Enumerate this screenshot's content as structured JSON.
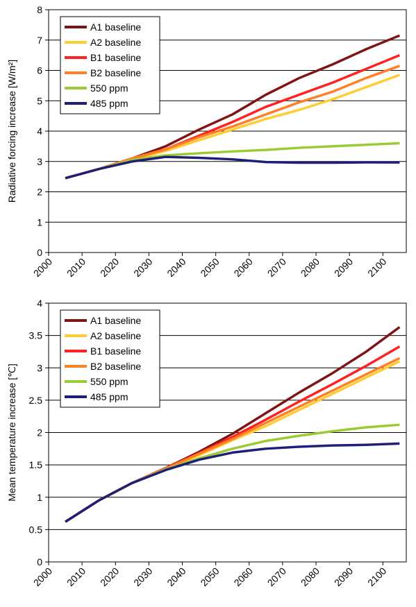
{
  "chart_data": [
    {
      "type": "line",
      "ylabel": "Radiative forcing increase [W/m²]",
      "x": [
        2005,
        2015,
        2025,
        2035,
        2045,
        2055,
        2065,
        2075,
        2085,
        2095,
        2105
      ],
      "xlim": [
        2000,
        2107
      ],
      "xticks": [
        2000,
        2010,
        2020,
        2030,
        2040,
        2050,
        2060,
        2070,
        2080,
        2090,
        2100
      ],
      "ylim": [
        0,
        8
      ],
      "yticks": [
        0,
        1,
        2,
        3,
        4,
        5,
        6,
        7,
        8
      ],
      "grid": true,
      "legend": "upper-left",
      "series": [
        {
          "name": "A1 baseline",
          "color": "#7f1414",
          "values": [
            2.45,
            2.75,
            3.1,
            3.5,
            4.05,
            4.55,
            5.2,
            5.75,
            6.2,
            6.7,
            7.15
          ]
        },
        {
          "name": "A2 baseline",
          "color": "#ffcc33",
          "values": [
            2.45,
            2.75,
            3.05,
            3.35,
            3.7,
            4.05,
            4.4,
            4.7,
            5.05,
            5.45,
            5.85
          ]
        },
        {
          "name": "B1 baseline",
          "color": "#ff2020",
          "values": [
            2.45,
            2.75,
            3.1,
            3.4,
            3.85,
            4.3,
            4.8,
            5.2,
            5.6,
            6.05,
            6.5
          ]
        },
        {
          "name": "B2 baseline",
          "color": "#ff7f27",
          "values": [
            2.45,
            2.75,
            3.1,
            3.4,
            3.8,
            4.15,
            4.55,
            4.95,
            5.3,
            5.75,
            6.15
          ]
        },
        {
          "name": "550 ppm",
          "color": "#99cc33",
          "values": [
            2.45,
            2.75,
            3.05,
            3.2,
            3.27,
            3.33,
            3.38,
            3.45,
            3.5,
            3.55,
            3.6
          ]
        },
        {
          "name": "485 ppm",
          "color": "#1f1f7a",
          "values": [
            2.45,
            2.75,
            3.0,
            3.15,
            3.12,
            3.07,
            2.98,
            2.96,
            2.96,
            2.97,
            2.97
          ]
        }
      ]
    },
    {
      "type": "line",
      "ylabel": "Mean temperature increase [℃]",
      "x": [
        2005,
        2015,
        2025,
        2035,
        2045,
        2055,
        2065,
        2075,
        2085,
        2095,
        2105
      ],
      "xlim": [
        2000,
        2107
      ],
      "xticks": [
        2000,
        2010,
        2020,
        2030,
        2040,
        2050,
        2060,
        2070,
        2080,
        2090,
        2100
      ],
      "ylim": [
        0,
        4
      ],
      "yticks": [
        0,
        0.5,
        1,
        1.5,
        2,
        2.5,
        3,
        3.5,
        4
      ],
      "grid": true,
      "legend": "upper-left",
      "series": [
        {
          "name": "A1 baseline",
          "color": "#7f1414",
          "values": [
            0.62,
            0.95,
            1.22,
            1.45,
            1.7,
            1.98,
            2.3,
            2.62,
            2.92,
            3.25,
            3.63
          ]
        },
        {
          "name": "A2 baseline",
          "color": "#ffcc33",
          "values": [
            0.62,
            0.95,
            1.22,
            1.43,
            1.65,
            1.88,
            2.1,
            2.35,
            2.6,
            2.85,
            3.1
          ]
        },
        {
          "name": "B1 baseline",
          "color": "#ff2020",
          "values": [
            0.62,
            0.95,
            1.22,
            1.45,
            1.68,
            1.93,
            2.2,
            2.48,
            2.75,
            3.03,
            3.33
          ]
        },
        {
          "name": "B2 baseline",
          "color": "#ff7f27",
          "values": [
            0.62,
            0.95,
            1.22,
            1.44,
            1.67,
            1.9,
            2.15,
            2.4,
            2.65,
            2.9,
            3.15
          ]
        },
        {
          "name": "550 ppm",
          "color": "#99cc33",
          "values": [
            0.62,
            0.95,
            1.22,
            1.43,
            1.6,
            1.75,
            1.87,
            1.95,
            2.02,
            2.08,
            2.12
          ]
        },
        {
          "name": "485 ppm",
          "color": "#1f1f7a",
          "values": [
            0.62,
            0.95,
            1.22,
            1.42,
            1.58,
            1.69,
            1.75,
            1.78,
            1.8,
            1.81,
            1.83
          ]
        }
      ]
    }
  ]
}
